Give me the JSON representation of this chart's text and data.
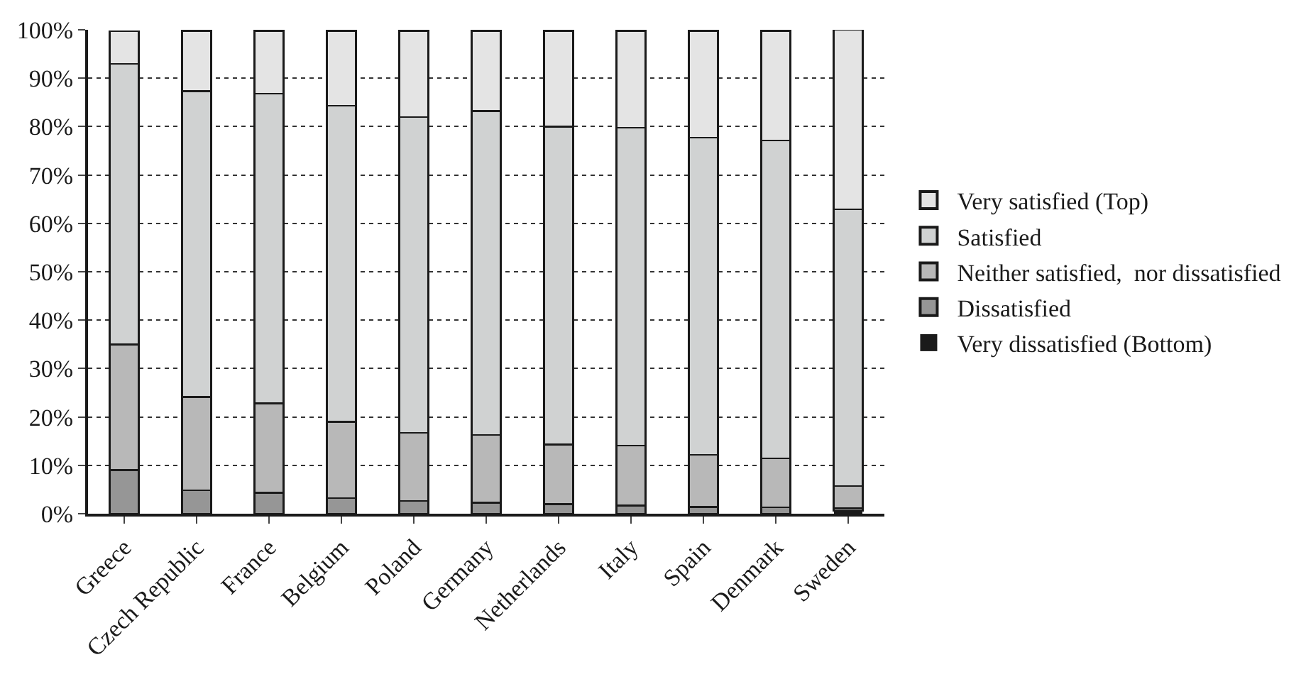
{
  "chart_data": {
    "type": "bar",
    "stacked": true,
    "categories": [
      "Greece",
      "Czech Republic",
      "France",
      "Belgium",
      "Poland",
      "Germany",
      "Netherlands",
      "Italy",
      "Spain",
      "Denmark",
      "Sweden"
    ],
    "series": [
      {
        "name": "Very dissatisfied (Bottom)",
        "color": "#1a1a1a",
        "values": [
          null,
          null,
          null,
          null,
          null,
          null,
          null,
          null,
          null,
          null,
          0.6
        ]
      },
      {
        "name": "Dissatisfied",
        "color": "#969696",
        "values": [
          9.0,
          4.8,
          4.3,
          3.2,
          2.6,
          2.3,
          2.0,
          1.7,
          1.4,
          1.3,
          0.5
        ]
      },
      {
        "name": "Neither satisfied,  nor dissatisfied",
        "color": "#b8b8b8",
        "values": [
          26.0,
          19.3,
          18.5,
          15.8,
          14.1,
          14.0,
          12.3,
          12.4,
          10.8,
          10.1,
          4.6
        ]
      },
      {
        "name": "Satisfied",
        "color": "#d0d2d2",
        "values": [
          58.0,
          63.2,
          64.0,
          65.3,
          65.3,
          66.9,
          65.7,
          65.7,
          65.5,
          65.7,
          57.2
        ]
      },
      {
        "name": "Very satisfied (Top)",
        "color": "#e4e4e4",
        "values": [
          6.7,
          12.5,
          13.0,
          15.5,
          17.8,
          16.6,
          19.8,
          20.0,
          22.1,
          22.7,
          37.2
        ]
      }
    ],
    "ylim": [
      0,
      100
    ],
    "yticks": [
      {
        "value": 0,
        "label": "0%"
      },
      {
        "value": 10,
        "label": "10%"
      },
      {
        "value": 20,
        "label": "20%"
      },
      {
        "value": 30,
        "label": "30%"
      },
      {
        "value": 40,
        "label": "40%"
      },
      {
        "value": 50,
        "label": "50%"
      },
      {
        "value": 60,
        "label": "60%"
      },
      {
        "value": 70,
        "label": "70%"
      },
      {
        "value": 80,
        "label": "80%"
      },
      {
        "value": 90,
        "label": "90%"
      },
      {
        "value": 100,
        "label": "100%"
      }
    ],
    "grid": "y",
    "legend": "right"
  }
}
